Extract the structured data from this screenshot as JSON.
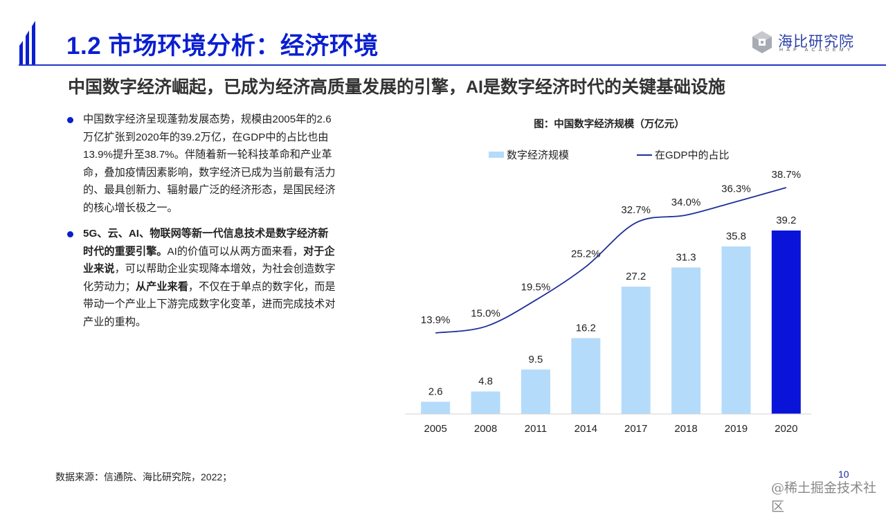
{
  "header": {
    "title": "1.2 市场环境分析：经济环境",
    "subtitle": "中国数字经济崛起，已成为经济高质量发展的引擎，AI是数字经济时代的关键基础设施",
    "logo_cn": "海比研究院",
    "logo_en": "HAP ACADEMY"
  },
  "bullets": [
    {
      "segments": [
        {
          "text": "中国数字经济呈现蓬勃发展态势，规模由2005年的2.6万亿扩张到2020年的39.2万亿，在GDP中的占比也由13.9%提升至38.7%。伴随着新一轮科技革命和产业革命，叠加疫情因素影响，数字经济已成为当前最有活力的、最具创新力、辐射最广泛的经济形态，是国民经济的核心增长极之一。",
          "bold": false
        }
      ]
    },
    {
      "segments": [
        {
          "text": "5G、云、AI、物联网等新一代信息技术是数字经济新时代的重要引擎。",
          "bold": true
        },
        {
          "text": "AI的价值可以从两方面来看，",
          "bold": false
        },
        {
          "text": "对于企业来说",
          "bold": true
        },
        {
          "text": "，可以帮助企业实现降本增效，为社会创造数字化劳动力；",
          "bold": false
        },
        {
          "text": "从产业来看",
          "bold": true
        },
        {
          "text": "，不仅在于单点的数字化，而是带动一个产业上下游完成数字化变革，进而完成技术对产业的重构。",
          "bold": false
        }
      ]
    }
  ],
  "chart_data": {
    "type": "bar",
    "title": "图：中国数字经济规模（万亿元）",
    "categories": [
      "2005",
      "2008",
      "2011",
      "2014",
      "2017",
      "2018",
      "2019",
      "2020"
    ],
    "series": [
      {
        "name": "数字经济规模",
        "kind": "bar",
        "values": [
          2.6,
          4.8,
          9.5,
          16.2,
          27.2,
          31.3,
          35.8,
          39.2
        ],
        "labels": [
          "2.6",
          "4.8",
          "9.5",
          "16.2",
          "27.2",
          "31.3",
          "35.8",
          "39.2"
        ],
        "color": "#b5dbfb",
        "highlight_color": "#0a14d8",
        "highlight_index": 7
      },
      {
        "name": "在GDP中的占比",
        "kind": "line",
        "values": [
          13.9,
          15.0,
          19.5,
          25.2,
          32.7,
          34.0,
          36.3,
          38.7
        ],
        "labels": [
          "13.9%",
          "15.0%",
          "19.5%",
          "25.2%",
          "32.7%",
          "34.0%",
          "36.3%",
          "38.7%"
        ],
        "unit": "%",
        "color": "#1e2e9a"
      }
    ],
    "xlabel": "",
    "ylabel": "",
    "grid": false,
    "legend": "top"
  },
  "footer": {
    "source": "数据来源：信通院、海比研究院，2022；",
    "page_number": "10",
    "watermark": "@稀土掘金技术社区"
  }
}
